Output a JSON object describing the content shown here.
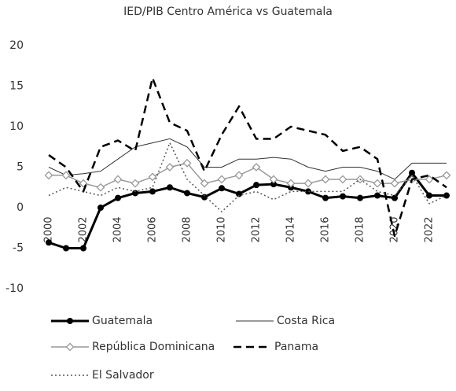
{
  "chart_data": {
    "type": "line",
    "title": "IED/PIB Centro América vs Guatemala",
    "categories": [
      "2000",
      null,
      "2002",
      null,
      "2004",
      null,
      "2006",
      null,
      "2008",
      null,
      "2010",
      null,
      "2012",
      null,
      "2014",
      null,
      "2016",
      null,
      "2018",
      null,
      "2020",
      null,
      "2022",
      null
    ],
    "series": [
      {
        "name": "Guatemala",
        "color": "#000000",
        "width": 3,
        "dash": "solid",
        "marker": "circle",
        "values": [
          -4.3,
          -5,
          -5,
          0,
          1.2,
          1.8,
          2,
          2.5,
          1.8,
          1.3,
          2.4,
          1.7,
          2.8,
          2.9,
          2.5,
          2,
          1.2,
          1.4,
          1.2,
          1.5,
          1.2,
          4.3,
          1.5,
          1.5
        ]
      },
      {
        "name": "Costa Rica",
        "color": "#333333",
        "width": 1,
        "dash": "solid",
        "marker": "none",
        "values": [
          5,
          4,
          4.2,
          4.5,
          6,
          7.5,
          8,
          8.5,
          7.5,
          5,
          5,
          6,
          6,
          6.2,
          6,
          5,
          4.5,
          5,
          5,
          4.5,
          3.5,
          5.5,
          5.5,
          5.5
        ]
      },
      {
        "name": "República Dominicana",
        "color": "#999999",
        "width": 1.5,
        "dash": "solid",
        "marker": "diamond",
        "values": [
          4,
          4,
          3,
          2.5,
          3.5,
          3,
          3.8,
          5,
          5.5,
          3,
          3.5,
          4,
          5,
          3.5,
          3,
          3,
          3.5,
          3.5,
          3.5,
          3,
          3,
          3.5,
          3.5,
          4
        ]
      },
      {
        "name": "Panama",
        "color": "#000000",
        "width": 2.5,
        "dash": "dashed",
        "marker": "none",
        "values": [
          6.5,
          5,
          2,
          7.5,
          8.3,
          7,
          16,
          10.5,
          9.5,
          4.5,
          9,
          12.5,
          8.5,
          8.5,
          10,
          9.5,
          9,
          7,
          7.5,
          6,
          -3.5,
          3.5,
          4,
          2.5
        ]
      },
      {
        "name": "El Salvador",
        "color": "#555555",
        "width": 1.5,
        "dash": "dotted",
        "marker": "none",
        "values": [
          1.5,
          2.5,
          2,
          1.5,
          2.5,
          2,
          2.5,
          8,
          3.5,
          1.5,
          -0.5,
          1.5,
          2,
          1,
          2,
          2,
          2,
          2,
          3.5,
          2,
          1.5,
          4,
          0.5,
          1.5
        ]
      }
    ],
    "ylim": [
      -10,
      20
    ],
    "yticks": [
      -10,
      -5,
      0,
      5,
      10,
      15,
      20
    ],
    "grid": false
  }
}
